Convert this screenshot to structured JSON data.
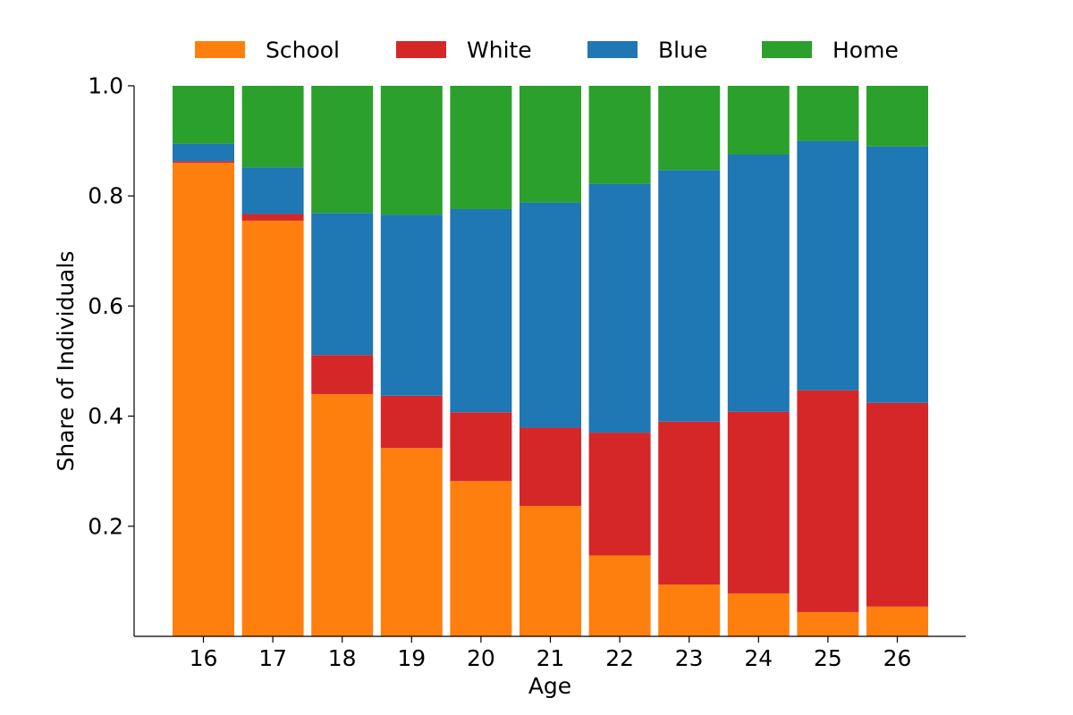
{
  "chart_data": {
    "type": "bar",
    "stacked": true,
    "categories": [
      "16",
      "17",
      "18",
      "19",
      "20",
      "21",
      "22",
      "23",
      "24",
      "25",
      "26"
    ],
    "series": [
      {
        "name": "School",
        "color": "#ff7f0e",
        "values": [
          0.86,
          0.755,
          0.44,
          0.342,
          0.282,
          0.237,
          0.147,
          0.094,
          0.078,
          0.044,
          0.054
        ]
      },
      {
        "name": "White",
        "color": "#d62728",
        "values": [
          0.003,
          0.012,
          0.071,
          0.095,
          0.125,
          0.142,
          0.223,
          0.296,
          0.33,
          0.403,
          0.37
        ]
      },
      {
        "name": "Blue",
        "color": "#1f77b4",
        "values": [
          0.032,
          0.085,
          0.258,
          0.329,
          0.369,
          0.409,
          0.452,
          0.457,
          0.467,
          0.453,
          0.466
        ]
      },
      {
        "name": "Home",
        "color": "#2ca02c",
        "values": [
          0.105,
          0.148,
          0.231,
          0.234,
          0.224,
          0.212,
          0.178,
          0.153,
          0.125,
          0.1,
          0.11
        ]
      }
    ],
    "xlabel": "Age",
    "ylabel": "Share of Individuals",
    "ylim": [
      0,
      1.0
    ],
    "yticks": [
      "0.2",
      "0.4",
      "0.6",
      "0.8",
      "1.0"
    ],
    "ytick_values": [
      0.2,
      0.4,
      0.6,
      0.8,
      1.0
    ],
    "legend_position": "top-center",
    "grid": false
  }
}
